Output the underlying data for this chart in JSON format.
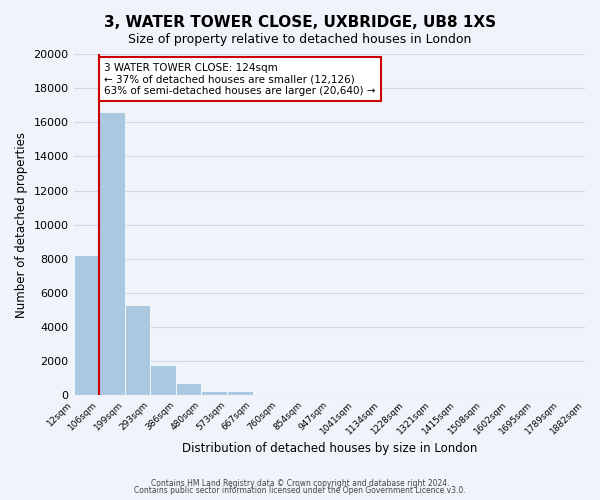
{
  "title": "3, WATER TOWER CLOSE, UXBRIDGE, UB8 1XS",
  "subtitle": "Size of property relative to detached houses in London",
  "xlabel": "Distribution of detached houses by size in London",
  "ylabel": "Number of detached properties",
  "bin_labels": [
    "12sqm",
    "106sqm",
    "199sqm",
    "293sqm",
    "386sqm",
    "480sqm",
    "573sqm",
    "667sqm",
    "760sqm",
    "854sqm",
    "947sqm",
    "1041sqm",
    "1134sqm",
    "1228sqm",
    "1321sqm",
    "1415sqm",
    "1508sqm",
    "1602sqm",
    "1695sqm",
    "1789sqm",
    "1882sqm"
  ],
  "bar_values": [
    8200,
    16600,
    5300,
    1800,
    750,
    250,
    280,
    0,
    0,
    0,
    0,
    0,
    0,
    0,
    0,
    0,
    0,
    0,
    0,
    0
  ],
  "bar_color": "#aac9e0",
  "bar_edge_color": "#aac9e0",
  "ylim": [
    0,
    20000
  ],
  "yticks": [
    0,
    2000,
    4000,
    6000,
    8000,
    10000,
    12000,
    14000,
    16000,
    18000,
    20000
  ],
  "vline_x": 1,
  "vline_color": "#cc0000",
  "annotation_text": "3 WATER TOWER CLOSE: 124sqm\n← 37% of detached houses are smaller (12,126)\n63% of semi-detached houses are larger (20,640) →",
  "annotation_box_color": "#ffffff",
  "annotation_box_edge_color": "#cc0000",
  "footnote1": "Contains HM Land Registry data © Crown copyright and database right 2024.",
  "footnote2": "Contains public sector information licensed under the Open Government Licence v3.0.",
  "grid_color": "#d0d8e8",
  "background_color": "#f0f4fa"
}
